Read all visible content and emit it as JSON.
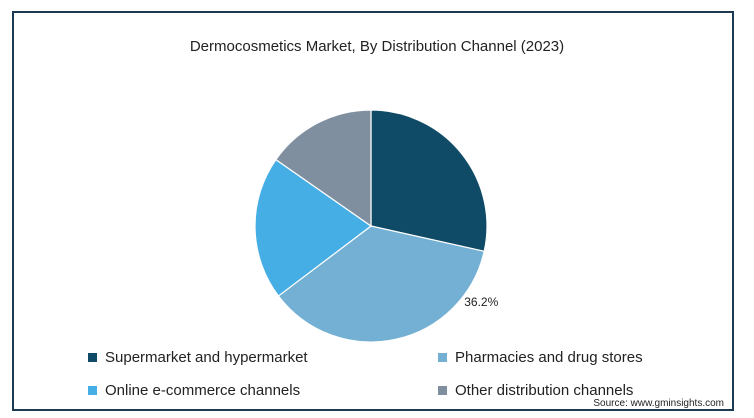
{
  "chart_data": {
    "type": "pie",
    "title": "Dermocosmetics Market, By Distribution Channel (2023)",
    "slices": [
      {
        "name": "Supermarket and hypermarket",
        "value": 28.5,
        "color": "#0f4a66"
      },
      {
        "name": "Pharmacies and drug stores",
        "value": 36.2,
        "color": "#74b0d3",
        "label": "36.2%"
      },
      {
        "name": "Online e-commerce channels",
        "value": 20.0,
        "color": "#45aee5"
      },
      {
        "name": "Other distribution channels",
        "value": 15.3,
        "color": "#7f8fa0"
      }
    ],
    "legend_position": "bottom"
  },
  "source": "Source: www.gminsights.com"
}
